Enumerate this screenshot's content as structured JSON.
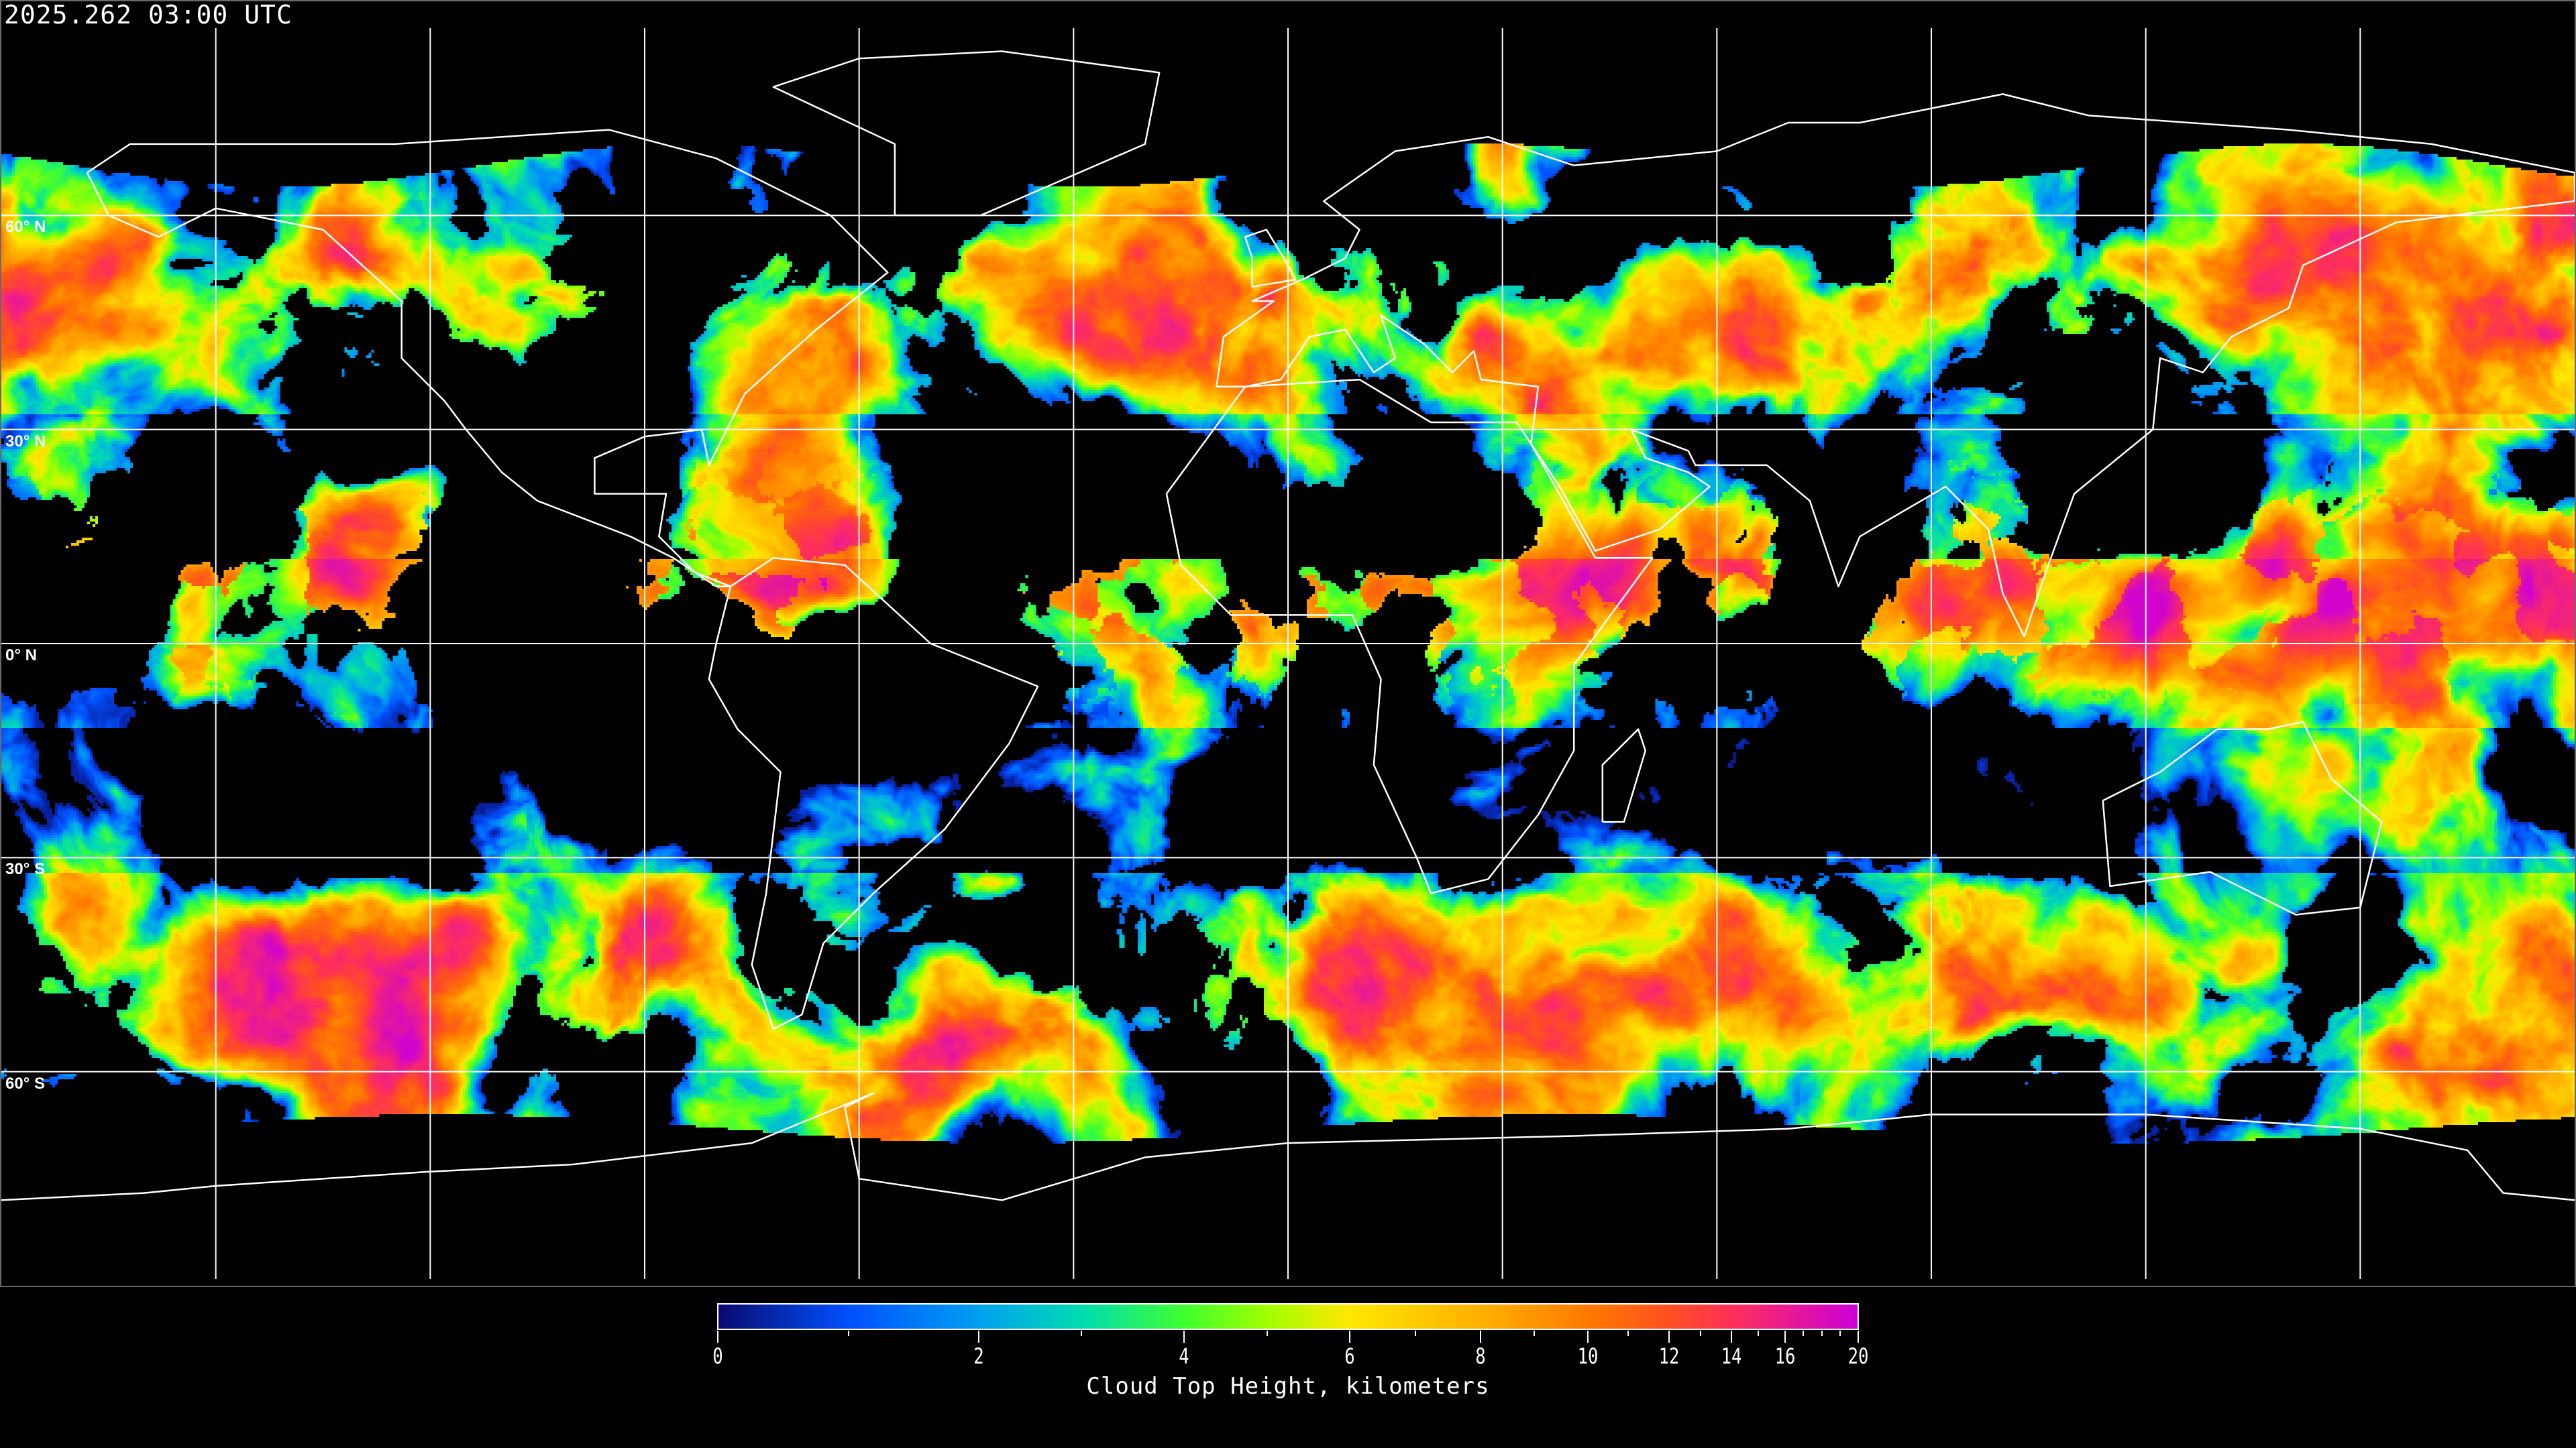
{
  "timestamp": "2025.262 03:00 UTC",
  "map": {
    "projection": "equirectangular",
    "graticule_spacing_deg": 30,
    "latitude_labels": [
      {
        "lat": 60,
        "text": "60° N"
      },
      {
        "lat": 30,
        "text": "30° N"
      },
      {
        "lat": 0,
        "text": "0° N"
      },
      {
        "lat": -30,
        "text": "30° S"
      },
      {
        "lat": -60,
        "text": "60° S"
      }
    ],
    "no_data_color": "#000000",
    "coastline_color": "#ffffff",
    "grid_color": "#ffffff"
  },
  "colorbar": {
    "title": "Cloud Top Height, kilometers",
    "range": [
      0,
      20
    ],
    "major_ticks": [
      {
        "value": 0,
        "label": "0"
      },
      {
        "value": 2,
        "label": "2"
      },
      {
        "value": 4,
        "label": "4"
      },
      {
        "value": 6,
        "label": "6"
      },
      {
        "value": 8,
        "label": "8"
      },
      {
        "value": 10,
        "label": "10"
      },
      {
        "value": 12,
        "label": "12"
      },
      {
        "value": 14,
        "label": "14"
      },
      {
        "value": 16,
        "label": "16"
      },
      {
        "value": 20,
        "label": "20"
      }
    ],
    "minor_ticks": [
      1,
      3,
      5,
      7,
      9,
      11,
      13,
      15,
      17,
      18,
      19
    ],
    "color_stops": [
      {
        "value": 0,
        "color": "#0a0a6e"
      },
      {
        "value": 1,
        "color": "#0050ff"
      },
      {
        "value": 2,
        "color": "#00a0f0"
      },
      {
        "value": 3,
        "color": "#00dcb0"
      },
      {
        "value": 4,
        "color": "#40ff30"
      },
      {
        "value": 5,
        "color": "#a0ff00"
      },
      {
        "value": 6,
        "color": "#ffe800"
      },
      {
        "value": 8,
        "color": "#ffb000"
      },
      {
        "value": 10,
        "color": "#ff7a00"
      },
      {
        "value": 12,
        "color": "#ff5020"
      },
      {
        "value": 14,
        "color": "#ff3058"
      },
      {
        "value": 20,
        "color": "#cc00d8"
      }
    ]
  }
}
